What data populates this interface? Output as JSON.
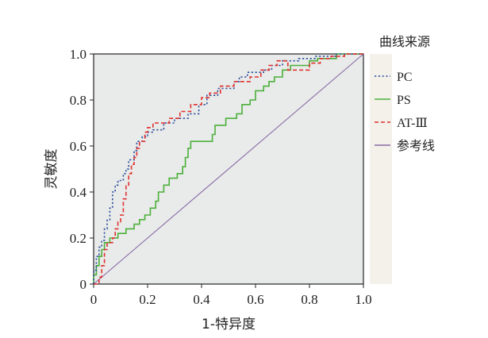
{
  "chart_data": {
    "type": "line",
    "title": "",
    "xlabel": "1-特异度",
    "ylabel": "灵敏度",
    "xlim": [
      0,
      1
    ],
    "ylim": [
      0,
      1
    ],
    "x_ticks": [
      "0",
      "0.2",
      "0.4",
      "0.6",
      "0.8",
      "1.0"
    ],
    "y_ticks": [
      "0",
      "0.2",
      "0.4",
      "0.6",
      "0.8",
      "1.0"
    ],
    "grid": false,
    "legend_title": "曲线来源",
    "legend_position": "right",
    "series": [
      {
        "name": "PC",
        "color": "#2f4f9f",
        "dash": "dotted",
        "points": [
          [
            0,
            0
          ],
          [
            0,
            0.06
          ],
          [
            0.01,
            0.06
          ],
          [
            0.01,
            0.12
          ],
          [
            0.02,
            0.12
          ],
          [
            0.02,
            0.16
          ],
          [
            0.03,
            0.16
          ],
          [
            0.03,
            0.19
          ],
          [
            0.04,
            0.19
          ],
          [
            0.04,
            0.24
          ],
          [
            0.05,
            0.24
          ],
          [
            0.05,
            0.28
          ],
          [
            0.06,
            0.28
          ],
          [
            0.06,
            0.33
          ],
          [
            0.07,
            0.33
          ],
          [
            0.07,
            0.4
          ],
          [
            0.08,
            0.4
          ],
          [
            0.08,
            0.43
          ],
          [
            0.09,
            0.43
          ],
          [
            0.09,
            0.45
          ],
          [
            0.11,
            0.45
          ],
          [
            0.11,
            0.48
          ],
          [
            0.12,
            0.48
          ],
          [
            0.12,
            0.5
          ],
          [
            0.13,
            0.5
          ],
          [
            0.13,
            0.54
          ],
          [
            0.15,
            0.54
          ],
          [
            0.15,
            0.58
          ],
          [
            0.16,
            0.58
          ],
          [
            0.16,
            0.62
          ],
          [
            0.18,
            0.62
          ],
          [
            0.18,
            0.64
          ],
          [
            0.2,
            0.64
          ],
          [
            0.2,
            0.66
          ],
          [
            0.22,
            0.66
          ],
          [
            0.22,
            0.67
          ],
          [
            0.26,
            0.67
          ],
          [
            0.26,
            0.7
          ],
          [
            0.3,
            0.7
          ],
          [
            0.3,
            0.72
          ],
          [
            0.35,
            0.72
          ],
          [
            0.35,
            0.74
          ],
          [
            0.39,
            0.74
          ],
          [
            0.39,
            0.78
          ],
          [
            0.42,
            0.78
          ],
          [
            0.42,
            0.82
          ],
          [
            0.46,
            0.82
          ],
          [
            0.46,
            0.85
          ],
          [
            0.52,
            0.85
          ],
          [
            0.52,
            0.88
          ],
          [
            0.54,
            0.88
          ],
          [
            0.54,
            0.9
          ],
          [
            0.57,
            0.9
          ],
          [
            0.57,
            0.92
          ],
          [
            0.63,
            0.92
          ],
          [
            0.63,
            0.93
          ],
          [
            0.66,
            0.93
          ],
          [
            0.66,
            0.95
          ],
          [
            0.7,
            0.95
          ],
          [
            0.7,
            0.97
          ],
          [
            0.76,
            0.97
          ],
          [
            0.76,
            0.98
          ],
          [
            0.82,
            0.98
          ],
          [
            0.82,
            0.99
          ],
          [
            0.9,
            0.99
          ],
          [
            0.9,
            1.0
          ],
          [
            1.0,
            1.0
          ]
        ]
      },
      {
        "name": "PS",
        "color": "#4caf3a",
        "dash": "solid",
        "points": [
          [
            0,
            0
          ],
          [
            0,
            0.04
          ],
          [
            0.01,
            0.04
          ],
          [
            0.01,
            0.08
          ],
          [
            0.02,
            0.08
          ],
          [
            0.02,
            0.12
          ],
          [
            0.03,
            0.12
          ],
          [
            0.03,
            0.15
          ],
          [
            0.04,
            0.15
          ],
          [
            0.04,
            0.18
          ],
          [
            0.06,
            0.18
          ],
          [
            0.06,
            0.2
          ],
          [
            0.09,
            0.2
          ],
          [
            0.09,
            0.22
          ],
          [
            0.12,
            0.22
          ],
          [
            0.12,
            0.24
          ],
          [
            0.15,
            0.24
          ],
          [
            0.15,
            0.26
          ],
          [
            0.17,
            0.26
          ],
          [
            0.17,
            0.28
          ],
          [
            0.19,
            0.28
          ],
          [
            0.19,
            0.3
          ],
          [
            0.21,
            0.3
          ],
          [
            0.21,
            0.33
          ],
          [
            0.23,
            0.33
          ],
          [
            0.23,
            0.36
          ],
          [
            0.24,
            0.36
          ],
          [
            0.24,
            0.4
          ],
          [
            0.26,
            0.4
          ],
          [
            0.26,
            0.43
          ],
          [
            0.28,
            0.43
          ],
          [
            0.28,
            0.46
          ],
          [
            0.31,
            0.46
          ],
          [
            0.31,
            0.48
          ],
          [
            0.33,
            0.48
          ],
          [
            0.33,
            0.51
          ],
          [
            0.34,
            0.51
          ],
          [
            0.34,
            0.55
          ],
          [
            0.35,
            0.55
          ],
          [
            0.35,
            0.59
          ],
          [
            0.36,
            0.59
          ],
          [
            0.36,
            0.62
          ],
          [
            0.44,
            0.62
          ],
          [
            0.44,
            0.65
          ],
          [
            0.45,
            0.65
          ],
          [
            0.45,
            0.69
          ],
          [
            0.49,
            0.69
          ],
          [
            0.49,
            0.72
          ],
          [
            0.53,
            0.72
          ],
          [
            0.53,
            0.74
          ],
          [
            0.55,
            0.74
          ],
          [
            0.55,
            0.78
          ],
          [
            0.58,
            0.78
          ],
          [
            0.58,
            0.8
          ],
          [
            0.6,
            0.8
          ],
          [
            0.6,
            0.84
          ],
          [
            0.63,
            0.84
          ],
          [
            0.63,
            0.86
          ],
          [
            0.65,
            0.86
          ],
          [
            0.65,
            0.88
          ],
          [
            0.67,
            0.88
          ],
          [
            0.67,
            0.9
          ],
          [
            0.7,
            0.9
          ],
          [
            0.7,
            0.93
          ],
          [
            0.73,
            0.93
          ],
          [
            0.73,
            0.95
          ],
          [
            0.8,
            0.95
          ],
          [
            0.8,
            0.97
          ],
          [
            0.83,
            0.97
          ],
          [
            0.83,
            0.98
          ],
          [
            0.9,
            0.98
          ],
          [
            0.9,
            1.0
          ],
          [
            1.0,
            1.0
          ]
        ]
      },
      {
        "name": "AT-Ⅲ",
        "color": "#e03030",
        "dash": "dashed",
        "points": [
          [
            0,
            0
          ],
          [
            0.02,
            0
          ],
          [
            0.02,
            0.03
          ],
          [
            0.03,
            0.03
          ],
          [
            0.03,
            0.08
          ],
          [
            0.04,
            0.08
          ],
          [
            0.04,
            0.15
          ],
          [
            0.05,
            0.15
          ],
          [
            0.05,
            0.18
          ],
          [
            0.07,
            0.18
          ],
          [
            0.07,
            0.2
          ],
          [
            0.08,
            0.2
          ],
          [
            0.08,
            0.24
          ],
          [
            0.09,
            0.24
          ],
          [
            0.09,
            0.27
          ],
          [
            0.1,
            0.27
          ],
          [
            0.1,
            0.3
          ],
          [
            0.11,
            0.3
          ],
          [
            0.11,
            0.37
          ],
          [
            0.12,
            0.37
          ],
          [
            0.12,
            0.43
          ],
          [
            0.13,
            0.43
          ],
          [
            0.13,
            0.48
          ],
          [
            0.14,
            0.48
          ],
          [
            0.14,
            0.52
          ],
          [
            0.15,
            0.52
          ],
          [
            0.15,
            0.55
          ],
          [
            0.16,
            0.55
          ],
          [
            0.16,
            0.59
          ],
          [
            0.17,
            0.59
          ],
          [
            0.17,
            0.62
          ],
          [
            0.19,
            0.62
          ],
          [
            0.19,
            0.66
          ],
          [
            0.2,
            0.66
          ],
          [
            0.2,
            0.68
          ],
          [
            0.22,
            0.68
          ],
          [
            0.22,
            0.7
          ],
          [
            0.28,
            0.7
          ],
          [
            0.28,
            0.72
          ],
          [
            0.32,
            0.72
          ],
          [
            0.32,
            0.75
          ],
          [
            0.36,
            0.75
          ],
          [
            0.36,
            0.78
          ],
          [
            0.4,
            0.78
          ],
          [
            0.4,
            0.81
          ],
          [
            0.43,
            0.81
          ],
          [
            0.43,
            0.83
          ],
          [
            0.47,
            0.83
          ],
          [
            0.47,
            0.86
          ],
          [
            0.52,
            0.86
          ],
          [
            0.52,
            0.88
          ],
          [
            0.58,
            0.88
          ],
          [
            0.58,
            0.9
          ],
          [
            0.62,
            0.9
          ],
          [
            0.62,
            0.93
          ],
          [
            0.65,
            0.93
          ],
          [
            0.65,
            0.95
          ],
          [
            0.68,
            0.95
          ],
          [
            0.68,
            0.97
          ],
          [
            0.72,
            0.97
          ],
          [
            0.72,
            0.93
          ],
          [
            0.8,
            0.93
          ],
          [
            0.8,
            0.96
          ],
          [
            0.84,
            0.96
          ],
          [
            0.84,
            0.98
          ],
          [
            0.88,
            0.98
          ],
          [
            0.88,
            0.99
          ],
          [
            0.93,
            0.99
          ],
          [
            0.93,
            1.0
          ],
          [
            1.0,
            1.0
          ]
        ]
      },
      {
        "name": "参考线",
        "color": "#8a6aa8",
        "dash": "solid",
        "points": [
          [
            0,
            0
          ],
          [
            1,
            1
          ]
        ]
      }
    ]
  }
}
